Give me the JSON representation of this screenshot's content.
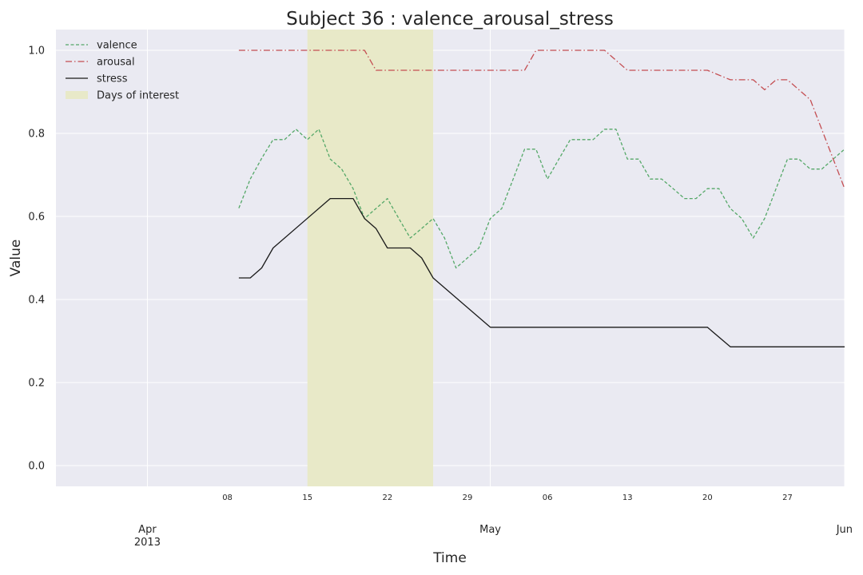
{
  "chart_data": {
    "type": "line",
    "title": "Subject 36 : valence_arousal_stress",
    "xlabel": "Time",
    "ylabel": "Value",
    "ylim": [
      -0.05,
      1.05
    ],
    "xlim": [
      "2013-03-24",
      "2013-06-01"
    ],
    "grid": true,
    "legend_position": "top-left",
    "y_ticks": [
      "0.0",
      "0.2",
      "0.4",
      "0.6",
      "0.8",
      "1.0"
    ],
    "x_minor_ticks": [
      {
        "date": "2013-04-08",
        "label": "08"
      },
      {
        "date": "2013-04-15",
        "label": "15"
      },
      {
        "date": "2013-04-22",
        "label": "22"
      },
      {
        "date": "2013-04-29",
        "label": "29"
      },
      {
        "date": "2013-05-06",
        "label": "06"
      },
      {
        "date": "2013-05-13",
        "label": "13"
      },
      {
        "date": "2013-05-20",
        "label": "20"
      },
      {
        "date": "2013-05-27",
        "label": "27"
      }
    ],
    "x_major_ticks": [
      {
        "date": "2013-04-01",
        "label": "Apr",
        "sublabel": "2013"
      },
      {
        "date": "2013-05-01",
        "label": "May",
        "sublabel": ""
      },
      {
        "date": "2013-06-01",
        "label": "Jun",
        "sublabel": ""
      }
    ],
    "highlight": {
      "name": "Days of interest",
      "start": "2013-04-15",
      "end": "2013-04-26",
      "color": "#e8e9c8"
    },
    "series": [
      {
        "name": "valence",
        "color": "#55a868",
        "dash": "dashed",
        "x": [
          "2013-04-09",
          "2013-04-10",
          "2013-04-11",
          "2013-04-12",
          "2013-04-13",
          "2013-04-14",
          "2013-04-15",
          "2013-04-16",
          "2013-04-17",
          "2013-04-18",
          "2013-04-19",
          "2013-04-20",
          "2013-04-21",
          "2013-04-22",
          "2013-04-23",
          "2013-04-24",
          "2013-04-25",
          "2013-04-26",
          "2013-04-27",
          "2013-04-28",
          "2013-04-29",
          "2013-04-30",
          "2013-05-01",
          "2013-05-02",
          "2013-05-03",
          "2013-05-04",
          "2013-05-05",
          "2013-05-06",
          "2013-05-07",
          "2013-05-08",
          "2013-05-09",
          "2013-05-10",
          "2013-05-11",
          "2013-05-12",
          "2013-05-13",
          "2013-05-14",
          "2013-05-15",
          "2013-05-16",
          "2013-05-17",
          "2013-05-18",
          "2013-05-19",
          "2013-05-20",
          "2013-05-21",
          "2013-05-22",
          "2013-05-23",
          "2013-05-24",
          "2013-05-25",
          "2013-05-26",
          "2013-05-27",
          "2013-05-28",
          "2013-05-29",
          "2013-05-30",
          "2013-05-31",
          "2013-06-01"
        ],
        "values": [
          0.62,
          0.69,
          0.74,
          0.785,
          0.785,
          0.81,
          0.785,
          0.81,
          0.738,
          0.714,
          0.667,
          0.595,
          0.619,
          0.643,
          0.595,
          0.548,
          0.571,
          0.595,
          0.548,
          0.476,
          0.5,
          0.524,
          0.595,
          0.619,
          0.69,
          0.762,
          0.762,
          0.69,
          0.738,
          0.785,
          0.785,
          0.785,
          0.81,
          0.81,
          0.738,
          0.738,
          0.69,
          0.69,
          0.667,
          0.643,
          0.643,
          0.667,
          0.667,
          0.619,
          0.595,
          0.548,
          0.595,
          0.667,
          0.738,
          0.738,
          0.714,
          0.714,
          0.738,
          0.762
        ]
      },
      {
        "name": "arousal",
        "color": "#c44e52",
        "dash": "dashdot",
        "x": [
          "2013-04-09",
          "2013-04-19",
          "2013-04-20",
          "2013-04-21",
          "2013-05-04",
          "2013-05-05",
          "2013-05-11",
          "2013-05-13",
          "2013-05-20",
          "2013-05-22",
          "2013-05-24",
          "2013-05-25",
          "2013-05-26",
          "2013-05-27",
          "2013-05-29",
          "2013-06-01"
        ],
        "values": [
          1.0,
          1.0,
          1.0,
          0.952,
          0.952,
          1.0,
          1.0,
          0.952,
          0.952,
          0.929,
          0.929,
          0.905,
          0.929,
          0.929,
          0.881,
          0.667
        ]
      },
      {
        "name": "stress",
        "color": "#1a1a1a",
        "dash": "solid",
        "x": [
          "2013-04-09",
          "2013-04-10",
          "2013-04-11",
          "2013-04-12",
          "2013-04-17",
          "2013-04-19",
          "2013-04-20",
          "2013-04-21",
          "2013-04-22",
          "2013-04-24",
          "2013-04-25",
          "2013-04-26",
          "2013-05-01",
          "2013-05-20",
          "2013-05-22",
          "2013-06-01"
        ],
        "values": [
          0.452,
          0.452,
          0.476,
          0.524,
          0.643,
          0.643,
          0.595,
          0.571,
          0.524,
          0.524,
          0.5,
          0.452,
          0.333,
          0.333,
          0.286,
          0.286
        ]
      }
    ]
  }
}
